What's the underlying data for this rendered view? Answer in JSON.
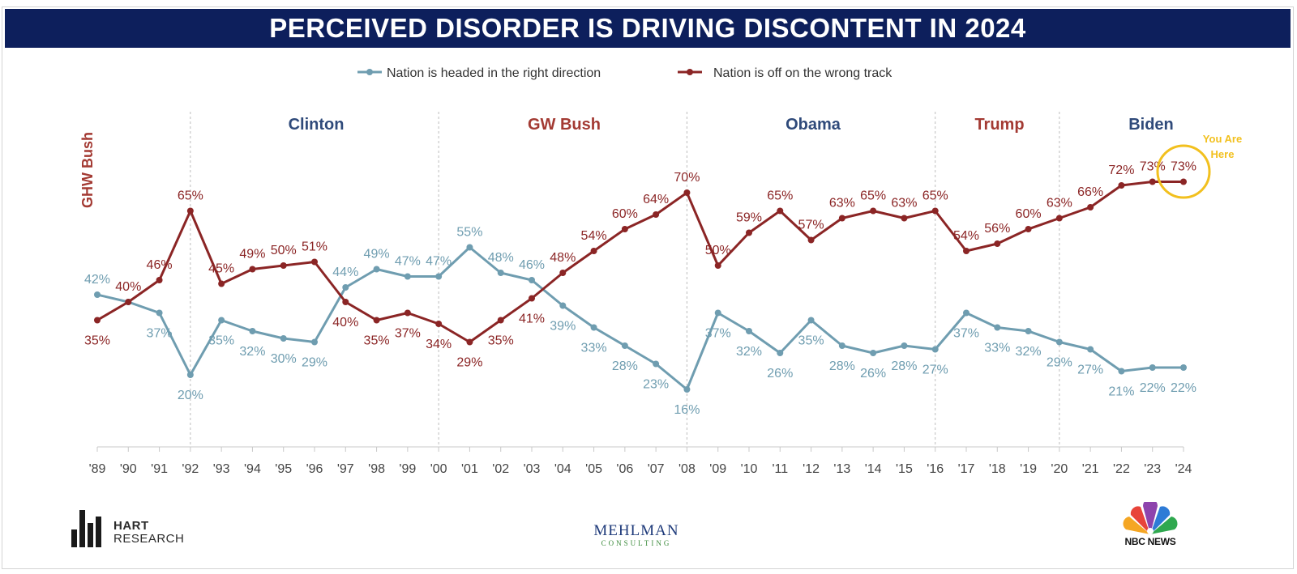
{
  "title": "PERCEIVED DISORDER IS DRIVING DISCONTENT IN 2024",
  "colors": {
    "right": "#6f9db0",
    "wrong": "#8b2525",
    "title_bg": "#0d1f5c",
    "blue_label": "#2f4a7a",
    "red_label": "#a33a33",
    "highlight": "#f2c01e"
  },
  "legend": {
    "right": "Nation is headed in the right direction",
    "wrong": "Nation is off on the wrong track"
  },
  "eras": [
    {
      "name": "GHW Bush",
      "color": "red",
      "vertical": true
    },
    {
      "name": "Clinton",
      "color": "blue"
    },
    {
      "name": "GW Bush",
      "color": "red"
    },
    {
      "name": "Obama",
      "color": "blue"
    },
    {
      "name": "Trump",
      "color": "red"
    },
    {
      "name": "Biden",
      "color": "blue"
    }
  ],
  "annotation": {
    "line1": "You Are",
    "line2": "Here"
  },
  "chart_data": {
    "type": "line",
    "categories": [
      "'89",
      "'90",
      "'91",
      "'92",
      "'93",
      "'94",
      "'95",
      "'96",
      "'97",
      "'98",
      "'99",
      "'00",
      "'01",
      "'02",
      "'03",
      "'04",
      "'05",
      "'06",
      "'07",
      "'08",
      "'09",
      "'10",
      "'11",
      "'12",
      "'13",
      "'14",
      "'15",
      "'16",
      "'17",
      "'18",
      "'19",
      "'20",
      "'21",
      "'22",
      "'23",
      "'24"
    ],
    "series": [
      {
        "name": "Nation is headed in the right direction",
        "key": "right",
        "values": [
          42,
          40,
          37,
          20,
          35,
          32,
          30,
          29,
          44,
          49,
          47,
          47,
          55,
          48,
          46,
          39,
          33,
          28,
          23,
          16,
          37,
          32,
          26,
          35,
          28,
          26,
          28,
          27,
          37,
          33,
          32,
          29,
          27,
          21,
          22,
          22
        ]
      },
      {
        "name": "Nation is off on the wrong track",
        "key": "wrong",
        "values": [
          35,
          40,
          46,
          65,
          45,
          49,
          50,
          51,
          40,
          35,
          37,
          34,
          29,
          35,
          41,
          48,
          54,
          60,
          64,
          70,
          50,
          59,
          65,
          57,
          63,
          65,
          63,
          65,
          54,
          56,
          60,
          63,
          66,
          72,
          73,
          73
        ]
      }
    ],
    "labels": {
      "right": [
        "42%",
        "",
        "37%",
        "20%",
        "35%",
        "32%",
        "30%",
        "29%",
        "44%",
        "49%",
        "47%",
        "47%",
        "55%",
        "48%",
        "46%",
        "39%",
        "33%",
        "28%",
        "23%",
        "16%",
        "37%",
        "32%",
        "26%",
        "35%",
        "28%",
        "26%",
        "28%",
        "27%",
        "37%",
        "33%",
        "32%",
        "29%",
        "27%",
        "21%",
        "22%",
        "22%"
      ],
      "wrong": [
        "35%",
        "40%",
        "46%",
        "65%",
        "45%",
        "49%",
        "50%",
        "51%",
        "40%",
        "35%",
        "37%",
        "34%",
        "29%",
        "35%",
        "41%",
        "48%",
        "54%",
        "60%",
        "64%",
        "70%",
        "50%",
        "59%",
        "65%",
        "57%",
        "63%",
        "65%",
        "63%",
        "65%",
        "54%",
        "56%",
        "60%",
        "63%",
        "66%",
        "72%",
        "73%",
        "73%"
      ]
    },
    "era_boundaries": [
      "'92",
      "'00",
      "'08",
      "'16",
      "'20"
    ],
    "xlabel": "",
    "ylabel": "",
    "ylim": [
      10,
      80
    ]
  },
  "logos": {
    "hart_line1": "HART",
    "hart_line2": "RESEARCH",
    "mehlman_line1": "MEHLMAN",
    "mehlman_line2": "CONSULTING",
    "nbc": "NBC NEWS"
  }
}
